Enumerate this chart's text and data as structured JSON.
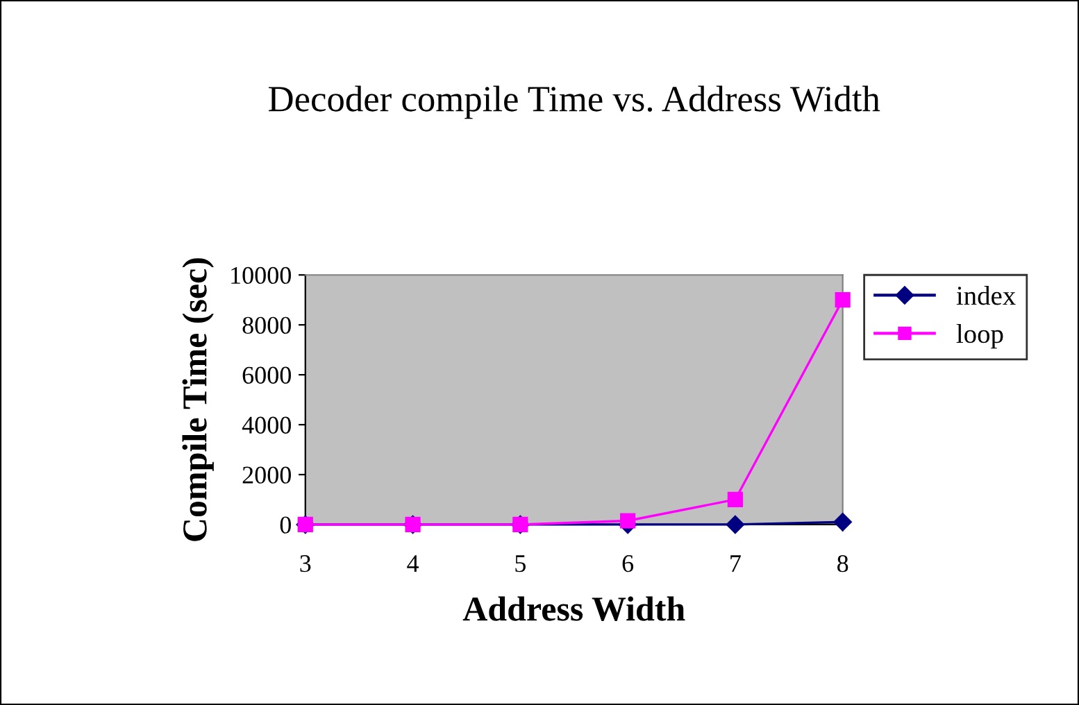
{
  "chart_data": {
    "type": "line",
    "title": "Decoder compile Time vs. Address Width",
    "xlabel": "Address Width",
    "ylabel": "Compile Time (sec)",
    "categories": [
      "3",
      "4",
      "5",
      "6",
      "7",
      "8"
    ],
    "series": [
      {
        "name": "index",
        "color": "#000080",
        "marker": "diamond",
        "values": [
          0,
          0,
          0,
          0,
          0,
          100
        ]
      },
      {
        "name": "loop",
        "color": "#ff00ff",
        "marker": "square",
        "values": [
          0,
          0,
          0,
          150,
          1000,
          9000
        ]
      }
    ],
    "ylim": [
      0,
      10000
    ],
    "yticks": [
      0,
      2000,
      4000,
      6000,
      8000,
      10000
    ],
    "grid": false,
    "legend": "right",
    "line_style": "solid"
  }
}
